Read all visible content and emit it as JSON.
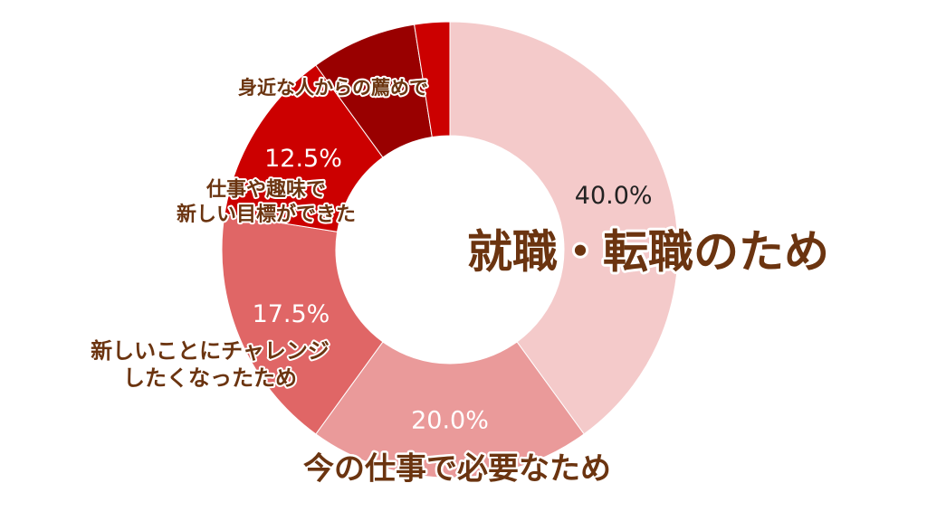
{
  "chart_data": {
    "type": "pie",
    "variant": "donut",
    "title": "",
    "categories": [
      "就職・転職のため",
      "今の仕事で必要なため",
      "新しいことにチャレンジしたくなったため",
      "仕事や趣味で新しい目標ができた",
      "身近な人からの薦めで",
      ""
    ],
    "values": [
      40.0,
      20.0,
      17.5,
      12.5,
      7.5,
      2.5
    ],
    "value_labels": [
      "40.0%",
      "20.0%",
      "17.5%",
      "12.5%",
      "",
      ""
    ],
    "label_lines": [
      [
        "就職・転職のため"
      ],
      [
        "今の仕事で必要なため"
      ],
      [
        "新しいことにチャレンジ",
        "したくなったため"
      ],
      [
        "仕事や趣味で",
        "新しい目標ができた"
      ],
      [
        "身近な人からの薦めで"
      ],
      []
    ],
    "colors": [
      "#f4caca",
      "#ea9a9a",
      "#e06666",
      "#cc0000",
      "#990000",
      "#cc0000"
    ],
    "legend": "none",
    "start_angle_deg": 0,
    "direction": "clockwise",
    "label_color": "#6b3410",
    "value_label_colors": [
      "#222222",
      "#ffffff",
      "#ffffff",
      "#ffffff",
      "#ffffff",
      "#ffffff"
    ]
  }
}
